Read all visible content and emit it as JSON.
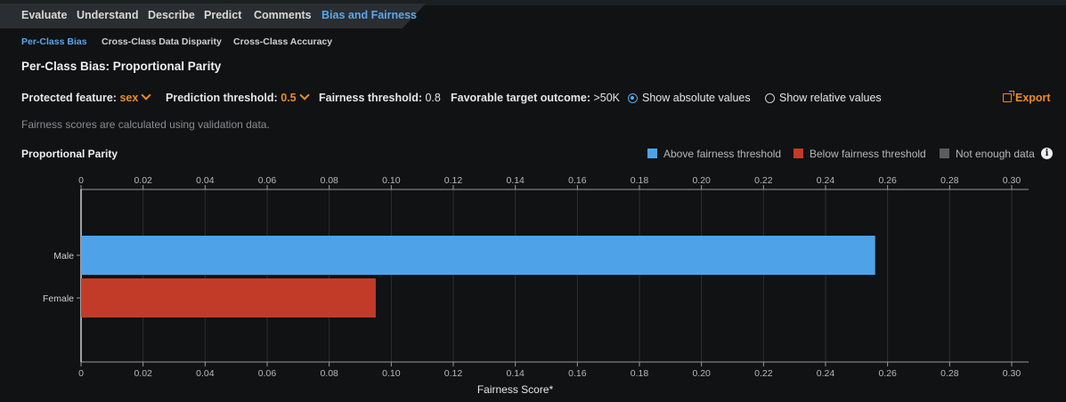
{
  "tabs": [
    {
      "label": "Evaluate",
      "active": false
    },
    {
      "label": "Understand",
      "active": false
    },
    {
      "label": "Describe",
      "active": false
    },
    {
      "label": "Predict",
      "active": false
    },
    {
      "label": "Comments",
      "active": false
    },
    {
      "label": "Bias and Fairness",
      "active": true
    }
  ],
  "subtabs": [
    {
      "label": "Per-Class Bias",
      "active": true
    },
    {
      "label": "Cross-Class Data Disparity",
      "active": false
    },
    {
      "label": "Cross-Class Accuracy",
      "active": false
    }
  ],
  "page_title": "Per-Class Bias: Proportional Parity",
  "controls": {
    "protected_feature_label": "Protected feature:",
    "protected_feature_value": "sex",
    "prediction_threshold_label": "Prediction threshold:",
    "prediction_threshold_value": "0.5",
    "fairness_threshold_label": "Fairness threshold:",
    "fairness_threshold_value": "0.8",
    "favorable_outcome_label": "Favorable target outcome:",
    "favorable_outcome_value": ">50K",
    "show_absolute_label": "Show absolute values",
    "show_relative_label": "Show relative values",
    "absolute_selected": true,
    "export_label": "Export",
    "export_icon": "external-link-icon"
  },
  "note": "Fairness scores are calculated using validation data.",
  "colors": {
    "above": "#4ea3e8",
    "below": "#c23b28",
    "not_enough": "#5a5d60",
    "accent": "#5aa8ec",
    "export": "#f08a24"
  },
  "legend": {
    "above": "Above fairness threshold",
    "below": "Below fairness threshold",
    "not_enough": "Not enough data"
  },
  "info_icon": "info-icon",
  "chart_data": {
    "type": "bar",
    "orientation": "horizontal",
    "title": "Proportional Parity",
    "xlabel": "Fairness Score*",
    "xlim": [
      0,
      0.3
    ],
    "xticks": [
      0,
      0.02,
      0.04,
      0.06,
      0.08,
      0.1,
      0.12,
      0.14,
      0.16,
      0.18,
      0.2,
      0.22,
      0.24,
      0.26,
      0.28,
      0.3
    ],
    "xtick_labels": [
      "0",
      "0.02",
      "0.04",
      "0.06",
      "0.08",
      "0.10",
      "0.12",
      "0.14",
      "0.16",
      "0.18",
      "0.20",
      "0.22",
      "0.24",
      "0.26",
      "0.28",
      "0.30"
    ],
    "categories": [
      "Male",
      "Female"
    ],
    "values": [
      0.256,
      0.095
    ],
    "status": [
      "above",
      "below"
    ],
    "grid": true
  }
}
